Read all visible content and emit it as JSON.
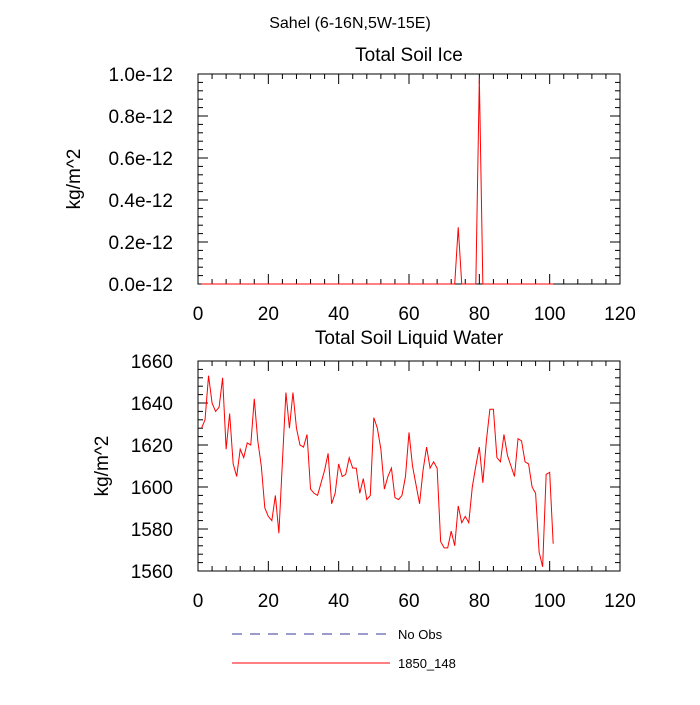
{
  "suptitle": "Sahel (6-16N,5W-15E)",
  "colors": {
    "model": "#ff0000",
    "obs": "#3a3a9a",
    "axis": "#000000"
  },
  "legend": [
    {
      "label": "No Obs",
      "style": "dashed",
      "color": "#3a3a9a"
    },
    {
      "label": "1850_148",
      "style": "solid",
      "color": "#ff0000"
    }
  ],
  "chart_data": [
    {
      "type": "line",
      "title": "Total Soil Ice",
      "ylabel": "kg/m^2",
      "xlabel": "",
      "xlim": [
        0,
        120
      ],
      "ylim": [
        0,
        1.0
      ],
      "x_ticks": [
        0,
        20,
        40,
        60,
        80,
        100,
        120
      ],
      "x_tick_labels": [
        "0",
        "20",
        "40",
        "60",
        "80",
        "100",
        "120"
      ],
      "y_ticks": [
        0,
        0.2,
        0.4,
        0.6,
        0.8,
        1.0
      ],
      "y_tick_labels": [
        "0.0e-12",
        "0.2e-12",
        "0.4e-12",
        "0.6e-12",
        "0.8e-12",
        "1.0e-12"
      ],
      "y_scale_note": "values in units of 1e-12",
      "series": [
        {
          "name": "1850_148",
          "x": [
            1,
            2,
            3,
            4,
            5,
            6,
            7,
            8,
            9,
            10,
            11,
            12,
            13,
            14,
            15,
            16,
            17,
            18,
            19,
            20,
            21,
            22,
            23,
            24,
            25,
            26,
            27,
            28,
            29,
            30,
            31,
            32,
            33,
            34,
            35,
            36,
            37,
            38,
            39,
            40,
            41,
            42,
            43,
            44,
            45,
            46,
            47,
            48,
            49,
            50,
            51,
            52,
            53,
            54,
            55,
            56,
            57,
            58,
            59,
            60,
            61,
            62,
            63,
            64,
            65,
            66,
            67,
            68,
            69,
            70,
            71,
            72,
            73,
            74,
            75,
            76,
            77,
            78,
            79,
            80,
            81,
            82,
            83,
            84,
            85,
            86,
            87,
            88,
            89,
            90,
            91,
            92,
            93,
            94,
            95,
            96,
            97,
            98,
            99,
            100,
            101
          ],
          "values": [
            0,
            0,
            0,
            0,
            0,
            0,
            0,
            0,
            0,
            0,
            0,
            0,
            0,
            0,
            0,
            0,
            0,
            0,
            0,
            0,
            0,
            0,
            0,
            0,
            0,
            0,
            0,
            0,
            0,
            0,
            0,
            0,
            0,
            0,
            0,
            0,
            0,
            0,
            0,
            0,
            0,
            0,
            0,
            0,
            0,
            0,
            0,
            0,
            0,
            0,
            0,
            0,
            0,
            0,
            0,
            0,
            0,
            0,
            0,
            0,
            0,
            0,
            0,
            0,
            0,
            0,
            0,
            0,
            0,
            0,
            0,
            0,
            0,
            0.27,
            0,
            0,
            0,
            0,
            0,
            0.98,
            0,
            0,
            0,
            0,
            0,
            0,
            0,
            0,
            0,
            0,
            0,
            0,
            0,
            0,
            0,
            0,
            0,
            0,
            0,
            0,
            0
          ]
        }
      ]
    },
    {
      "type": "line",
      "title": "Total Soil Liquid Water",
      "ylabel": "kg/m^2",
      "xlabel": "",
      "xlim": [
        0,
        120
      ],
      "ylim": [
        1560,
        1660
      ],
      "x_ticks": [
        0,
        20,
        40,
        60,
        80,
        100,
        120
      ],
      "x_tick_labels": [
        "0",
        "20",
        "40",
        "60",
        "80",
        "100",
        "120"
      ],
      "y_ticks": [
        1560,
        1580,
        1600,
        1620,
        1640,
        1660
      ],
      "y_tick_labels": [
        "1560",
        "1580",
        "1600",
        "1620",
        "1640",
        "1660"
      ],
      "series": [
        {
          "name": "1850_148",
          "x": [
            1,
            2,
            3,
            4,
            5,
            6,
            7,
            8,
            9,
            10,
            11,
            12,
            13,
            14,
            15,
            16,
            17,
            18,
            19,
            20,
            21,
            22,
            23,
            24,
            25,
            26,
            27,
            28,
            29,
            30,
            31,
            32,
            33,
            34,
            35,
            36,
            37,
            38,
            39,
            40,
            41,
            42,
            43,
            44,
            45,
            46,
            47,
            48,
            49,
            50,
            51,
            52,
            53,
            54,
            55,
            56,
            57,
            58,
            59,
            60,
            61,
            62,
            63,
            64,
            65,
            66,
            67,
            68,
            69,
            70,
            71,
            72,
            73,
            74,
            75,
            76,
            77,
            78,
            79,
            80,
            81,
            82,
            83,
            84,
            85,
            86,
            87,
            88,
            89,
            90,
            91,
            92,
            93,
            94,
            95,
            96,
            97,
            98,
            99,
            100,
            101
          ],
          "values": [
            1628,
            1632,
            1653,
            1640,
            1636,
            1638,
            1652,
            1618,
            1635,
            1611,
            1605,
            1618,
            1614,
            1621,
            1620,
            1642,
            1622,
            1610,
            1590,
            1586,
            1584,
            1596,
            1578,
            1612,
            1645,
            1628,
            1645,
            1628,
            1620,
            1619,
            1625,
            1599,
            1597,
            1596,
            1602,
            1608,
            1616,
            1592,
            1597,
            1611,
            1605,
            1606,
            1614,
            1609,
            1609,
            1597,
            1604,
            1594,
            1596,
            1633,
            1628,
            1618,
            1599,
            1605,
            1609,
            1595,
            1594,
            1596,
            1605,
            1626,
            1610,
            1601,
            1592,
            1608,
            1619,
            1609,
            1612,
            1609,
            1574,
            1571,
            1571,
            1579,
            1572,
            1591,
            1583,
            1586,
            1583,
            1600,
            1610,
            1619,
            1602,
            1622,
            1637,
            1637,
            1614,
            1612,
            1625,
            1615,
            1610,
            1605,
            1623,
            1622,
            1612,
            1611,
            1600,
            1597,
            1569,
            1562,
            1606,
            1607,
            1573
          ]
        }
      ]
    }
  ]
}
